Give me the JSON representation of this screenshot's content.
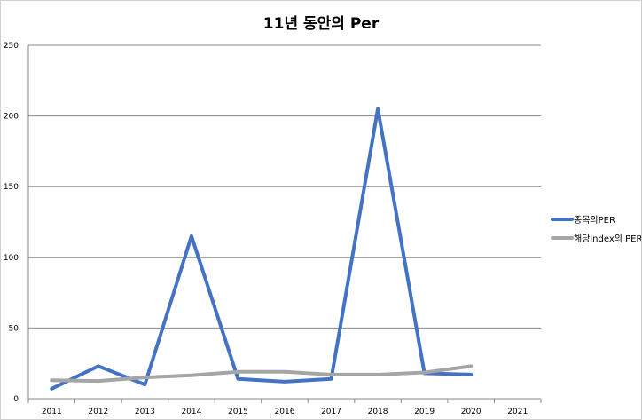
{
  "chart_data": {
    "type": "line",
    "title": "11년 동안의 Per",
    "xlabel": "",
    "ylabel": "",
    "categories": [
      "2011",
      "2012",
      "2013",
      "2014",
      "2015",
      "2016",
      "2017",
      "2018",
      "2019",
      "2020",
      "2021"
    ],
    "ylim": [
      0,
      250
    ],
    "yticks": [
      "0",
      "50",
      "100",
      "150",
      "200",
      "250"
    ],
    "grid": true,
    "legend_position": "right",
    "series": [
      {
        "name": "종목의PER",
        "color": "#4472C4",
        "values": [
          7,
          23,
          10,
          115,
          14,
          12,
          14,
          205,
          18,
          17,
          null
        ]
      },
      {
        "name": "해당index의 PER",
        "color": "#A5A5A5",
        "values": [
          13,
          12.5,
          15,
          16.5,
          19,
          19,
          17,
          17,
          18.5,
          23,
          null
        ]
      }
    ]
  }
}
